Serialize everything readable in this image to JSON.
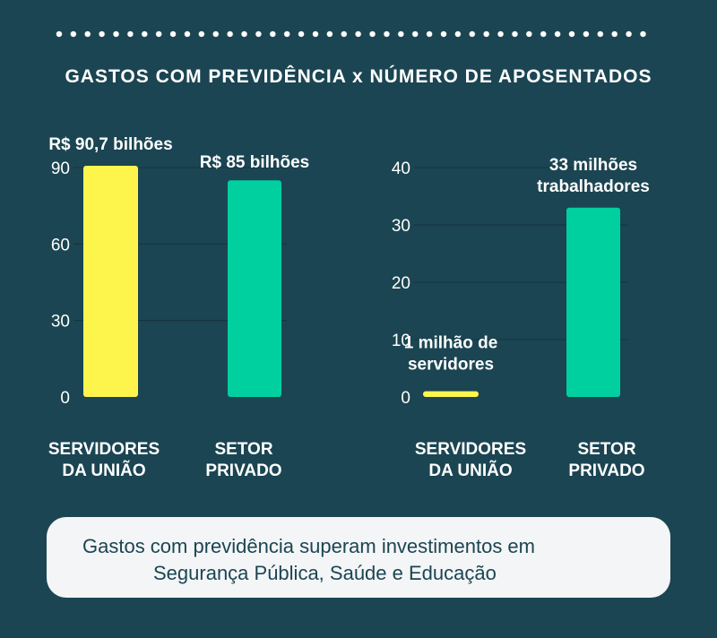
{
  "title": "GASTOS COM PREVIDÊNCIA x NÚMERO DE APOSENTADOS",
  "colors": {
    "background": "#1b4552",
    "yellow": "#fef54c",
    "green": "#00cfa0",
    "footer_bg": "#f4f5f7",
    "footer_text": "#1b4552"
  },
  "chart_data": [
    {
      "type": "bar",
      "categories": [
        "SERVIDORES DA UNIÃO",
        "SETOR PRIVADO"
      ],
      "category_lines": [
        [
          "SERVIDORES",
          "DA UNIÃO"
        ],
        [
          "SETOR",
          "PRIVADO"
        ]
      ],
      "values": [
        90.7,
        85
      ],
      "value_labels": [
        "R$ 90,7 bilhões",
        "R$ 85 bilhões"
      ],
      "yticks": [
        0,
        30,
        60,
        90
      ],
      "grid": true,
      "bar_colors": [
        "#fef54c",
        "#00cfa0"
      ]
    },
    {
      "type": "bar",
      "categories": [
        "SERVIDORES DA UNIÃO",
        "SETOR PRIVADO"
      ],
      "category_lines": [
        [
          "SERVIDORES",
          "DA UNIÃO"
        ],
        [
          "SETOR",
          "PRIVADO"
        ]
      ],
      "values": [
        1,
        33
      ],
      "value_labels": [
        [
          "1 milhão de",
          "servidores"
        ],
        [
          "33 milhões",
          "trabalhadores"
        ]
      ],
      "yticks": [
        0,
        10,
        20,
        30,
        40
      ],
      "grid": true,
      "bar_colors": [
        "#fef54c",
        "#00cfa0"
      ]
    }
  ],
  "footer": {
    "line1": "Gastos com previdência superam investimentos em",
    "line2": "Segurança Pública, Saúde e Educação"
  }
}
